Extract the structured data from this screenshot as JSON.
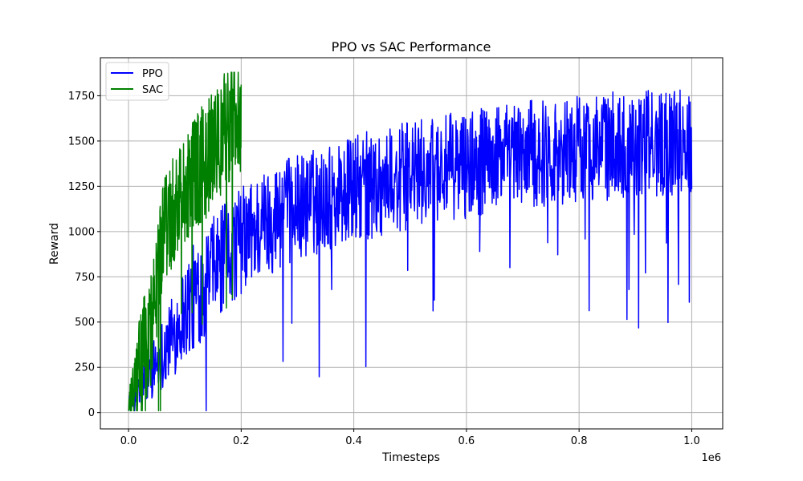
{
  "chart_data": {
    "type": "line",
    "title": "PPO vs SAC Performance",
    "xlabel": "Timesteps",
    "ylabel": "Reward",
    "x_scale_label": "1e6",
    "xlim": [
      -50000,
      1055000
    ],
    "ylim": [
      -90,
      1960
    ],
    "x_ticks": [
      0,
      200000,
      400000,
      600000,
      800000,
      1000000
    ],
    "x_tick_labels": [
      "0.0",
      "0.2",
      "0.4",
      "0.6",
      "0.8",
      "1.0"
    ],
    "y_ticks": [
      0,
      250,
      500,
      750,
      1000,
      1250,
      1500,
      1750
    ],
    "y_tick_labels": [
      "0",
      "250",
      "500",
      "750",
      "1000",
      "1250",
      "1500",
      "1750"
    ],
    "grid": true,
    "legend_position": "top-left",
    "series": [
      {
        "name": "PPO",
        "color": "#0000ff",
        "x": [
          0,
          10000,
          20000,
          30000,
          40000,
          50000,
          60000,
          70000,
          80000,
          90000,
          100000,
          120000,
          140000,
          160000,
          180000,
          200000,
          230000,
          260000,
          300000,
          340000,
          380000,
          420000,
          460000,
          500000,
          550000,
          600000,
          650000,
          700000,
          750000,
          800000,
          850000,
          900000,
          950000,
          1000000
        ],
        "values": [
          20,
          80,
          130,
          180,
          230,
          280,
          330,
          380,
          430,
          500,
          560,
          650,
          740,
          820,
          890,
          950,
          1020,
          1080,
          1130,
          1170,
          1210,
          1250,
          1280,
          1310,
          1340,
          1370,
          1400,
          1420,
          1440,
          1460,
          1470,
          1480,
          1490,
          1500
        ],
        "noise": 300
      },
      {
        "name": "SAC",
        "color": "#008000",
        "x": [
          0,
          10000,
          20000,
          30000,
          40000,
          50000,
          60000,
          70000,
          80000,
          90000,
          100000,
          110000,
          120000,
          130000,
          140000,
          150000,
          160000,
          170000,
          180000,
          190000,
          200000
        ],
        "values": [
          20,
          120,
          250,
          350,
          450,
          700,
          950,
          1050,
          1150,
          1200,
          1250,
          1300,
          1330,
          1370,
          1400,
          1450,
          1500,
          1560,
          1600,
          1630,
          1650
        ],
        "noise": 320
      }
    ]
  }
}
